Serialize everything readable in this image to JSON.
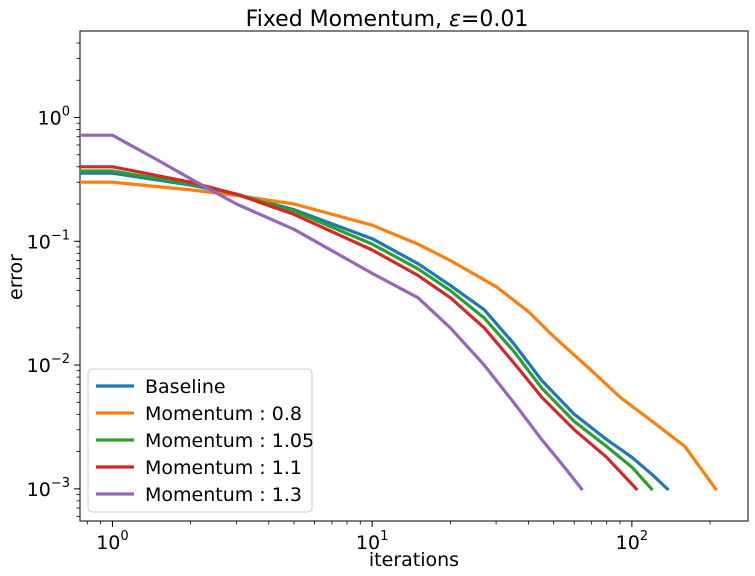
{
  "chart_data": {
    "type": "line",
    "title_main": "Fixed Momentum, ",
    "title_eps": "ε",
    "title_value": "=0.01",
    "xlabel": "iterations",
    "ylabel": "error",
    "x_scale": "log",
    "y_scale": "log",
    "xlim": [
      0.75,
      280
    ],
    "ylim": [
      0.00055,
      5
    ],
    "x_ticks": [
      {
        "value": 1,
        "base": "10",
        "exp": "0"
      },
      {
        "value": 10,
        "base": "10",
        "exp": "1"
      },
      {
        "value": 100,
        "base": "10",
        "exp": "2"
      }
    ],
    "y_ticks": [
      {
        "value": 1,
        "base": "10",
        "exp": "0"
      },
      {
        "value": 0.1,
        "base": "10",
        "exp": "−1"
      },
      {
        "value": 0.01,
        "base": "10",
        "exp": "−2"
      },
      {
        "value": 0.001,
        "base": "10",
        "exp": "−3"
      }
    ],
    "legend_position": "lower-left",
    "series": [
      {
        "name": "Baseline",
        "color": "#1f77b4",
        "points": [
          [
            0.75,
            0.355
          ],
          [
            1,
            0.355
          ],
          [
            2,
            0.285
          ],
          [
            3,
            0.24
          ],
          [
            5,
            0.18
          ],
          [
            10,
            0.105
          ],
          [
            15,
            0.066
          ],
          [
            20,
            0.044
          ],
          [
            27,
            0.028
          ],
          [
            35,
            0.015
          ],
          [
            45,
            0.0075
          ],
          [
            60,
            0.004
          ],
          [
            80,
            0.0025
          ],
          [
            100,
            0.0018
          ],
          [
            120,
            0.0013
          ],
          [
            137,
            0.001
          ]
        ]
      },
      {
        "name": "Momentum : 0.8",
        "color": "#ff7f0e",
        "points": [
          [
            0.75,
            0.3
          ],
          [
            1,
            0.3
          ],
          [
            2,
            0.26
          ],
          [
            3,
            0.235
          ],
          [
            5,
            0.2
          ],
          [
            10,
            0.135
          ],
          [
            15,
            0.095
          ],
          [
            20,
            0.07
          ],
          [
            30,
            0.043
          ],
          [
            40,
            0.027
          ],
          [
            50,
            0.017
          ],
          [
            70,
            0.009
          ],
          [
            90,
            0.0055
          ],
          [
            120,
            0.0035
          ],
          [
            160,
            0.0022
          ],
          [
            210,
            0.001
          ]
        ]
      },
      {
        "name": "Momentum : 1.05",
        "color": "#2ca02c",
        "points": [
          [
            0.75,
            0.37
          ],
          [
            1,
            0.37
          ],
          [
            2,
            0.29
          ],
          [
            3,
            0.24
          ],
          [
            5,
            0.175
          ],
          [
            10,
            0.095
          ],
          [
            15,
            0.06
          ],
          [
            20,
            0.04
          ],
          [
            27,
            0.024
          ],
          [
            35,
            0.013
          ],
          [
            45,
            0.0065
          ],
          [
            60,
            0.0035
          ],
          [
            80,
            0.0022
          ],
          [
            100,
            0.0015
          ],
          [
            119,
            0.001
          ]
        ]
      },
      {
        "name": "Momentum : 1.1",
        "color": "#d62728",
        "points": [
          [
            0.75,
            0.4
          ],
          [
            1,
            0.4
          ],
          [
            2,
            0.3
          ],
          [
            3,
            0.24
          ],
          [
            5,
            0.165
          ],
          [
            10,
            0.085
          ],
          [
            15,
            0.053
          ],
          [
            20,
            0.035
          ],
          [
            27,
            0.02
          ],
          [
            35,
            0.0105
          ],
          [
            45,
            0.0055
          ],
          [
            60,
            0.003
          ],
          [
            80,
            0.0018
          ],
          [
            104,
            0.001
          ]
        ]
      },
      {
        "name": "Momentum : 1.3",
        "color": "#9467bd",
        "points": [
          [
            0.75,
            0.72
          ],
          [
            1,
            0.72
          ],
          [
            1.5,
            0.45
          ],
          [
            2,
            0.32
          ],
          [
            3,
            0.2
          ],
          [
            5,
            0.125
          ],
          [
            10,
            0.055
          ],
          [
            15,
            0.035
          ],
          [
            20,
            0.02
          ],
          [
            27,
            0.01
          ],
          [
            35,
            0.005
          ],
          [
            45,
            0.0025
          ],
          [
            55,
            0.0015
          ],
          [
            64,
            0.001
          ]
        ]
      }
    ]
  }
}
